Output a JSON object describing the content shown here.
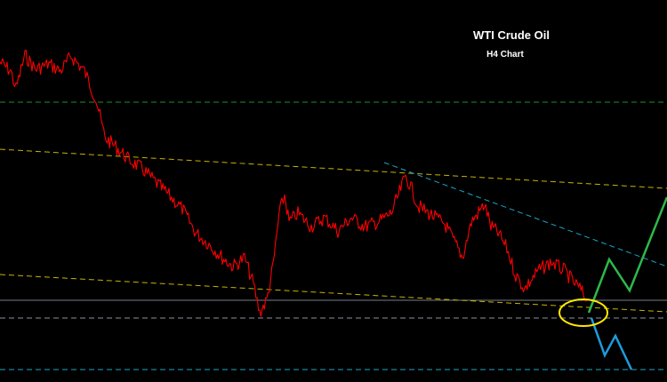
{
  "chart_data": {
    "type": "line",
    "title": "WTI Crude Oil",
    "subtitle": "H4 Chart",
    "grid": false,
    "legend": "none",
    "y_range": [
      0,
      430
    ],
    "colors": {
      "background": "#000000",
      "price": "#ff0000",
      "green_level": "#1a8f3a",
      "channel": "#c8b400",
      "downtrend": "#1aa6c8",
      "support": "#c8d4e0",
      "cyan_level": "#1aa6c8",
      "highlight": "#ffe800",
      "bull_path": "#2db84a",
      "bear_path": "#1e9bdc"
    },
    "price_anchors": [
      [
        0,
        70
      ],
      [
        12,
        80
      ],
      [
        18,
        100
      ],
      [
        28,
        62
      ],
      [
        40,
        78
      ],
      [
        55,
        72
      ],
      [
        68,
        80
      ],
      [
        80,
        63
      ],
      [
        95,
        80
      ],
      [
        108,
        112
      ],
      [
        118,
        155
      ],
      [
        130,
        165
      ],
      [
        145,
        180
      ],
      [
        160,
        190
      ],
      [
        175,
        205
      ],
      [
        190,
        220
      ],
      [
        205,
        235
      ],
      [
        220,
        262
      ],
      [
        235,
        275
      ],
      [
        250,
        290
      ],
      [
        262,
        300
      ],
      [
        275,
        290
      ],
      [
        285,
        320
      ],
      [
        292,
        352
      ],
      [
        300,
        338
      ],
      [
        307,
        300
      ],
      [
        314,
        240
      ],
      [
        320,
        220
      ],
      [
        325,
        250
      ],
      [
        335,
        240
      ],
      [
        350,
        255
      ],
      [
        365,
        245
      ],
      [
        380,
        260
      ],
      [
        395,
        245
      ],
      [
        410,
        255
      ],
      [
        425,
        250
      ],
      [
        440,
        240
      ],
      [
        448,
        220
      ],
      [
        456,
        198
      ],
      [
        462,
        210
      ],
      [
        470,
        232
      ],
      [
        485,
        242
      ],
      [
        500,
        252
      ],
      [
        515,
        280
      ],
      [
        520,
        290
      ],
      [
        530,
        250
      ],
      [
        545,
        230
      ],
      [
        552,
        255
      ],
      [
        560,
        262
      ],
      [
        570,
        280
      ],
      [
        580,
        310
      ],
      [
        590,
        325
      ],
      [
        605,
        305
      ],
      [
        620,
        295
      ],
      [
        635,
        305
      ],
      [
        645,
        318
      ],
      [
        652,
        325
      ],
      [
        660,
        338
      ]
    ],
    "levels": {
      "green_dashed": 115,
      "support_solid": 338,
      "lower_dashed": 358,
      "cyan_dashed": 416
    },
    "trendlines": [
      {
        "name": "channel-upper",
        "from": [
          0,
          168
        ],
        "to": [
          750,
          212
        ]
      },
      {
        "name": "channel-lower",
        "from": [
          0,
          309
        ],
        "to": [
          750,
          351
        ]
      },
      {
        "name": "downtrend",
        "from": [
          432,
          183
        ],
        "to": [
          750,
          300
        ]
      }
    ],
    "projections": {
      "bullish": [
        [
          662,
          352
        ],
        [
          685,
          292
        ],
        [
          708,
          327
        ],
        [
          750,
          222
        ]
      ],
      "bearish": [
        [
          665,
          358
        ],
        [
          680,
          400
        ],
        [
          692,
          378
        ],
        [
          710,
          416
        ]
      ]
    },
    "highlight_ellipse": {
      "center": [
        656,
        352
      ],
      "rx": 27,
      "ry": 15
    }
  }
}
